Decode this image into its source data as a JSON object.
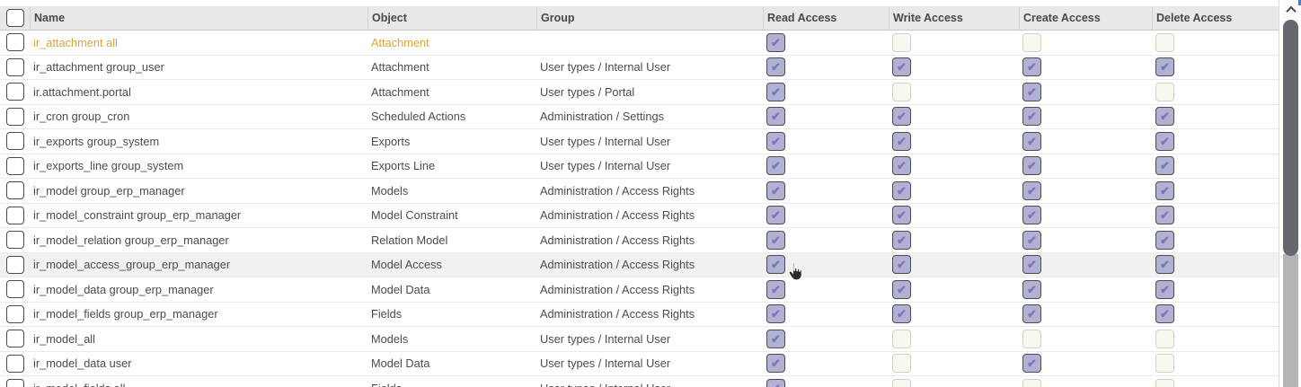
{
  "table": {
    "columns": {
      "name": "Name",
      "object": "Object",
      "group": "Group",
      "read": "Read Access",
      "write": "Write Access",
      "create": "Create Access",
      "delete": "Delete Access"
    },
    "access_keys": [
      "read",
      "write",
      "create",
      "delete"
    ],
    "rows": [
      {
        "name": "ir_attachment all",
        "object": "Attachment",
        "group": "",
        "read": true,
        "write": false,
        "create": false,
        "delete": false,
        "modified": true,
        "hovered": false
      },
      {
        "name": "ir_attachment group_user",
        "object": "Attachment",
        "group": "User types / Internal User",
        "read": true,
        "write": true,
        "create": true,
        "delete": true,
        "modified": false,
        "hovered": false
      },
      {
        "name": "ir.attachment.portal",
        "object": "Attachment",
        "group": "User types / Portal",
        "read": true,
        "write": false,
        "create": true,
        "delete": false,
        "modified": false,
        "hovered": false
      },
      {
        "name": "ir_cron group_cron",
        "object": "Scheduled Actions",
        "group": "Administration / Settings",
        "read": true,
        "write": true,
        "create": true,
        "delete": true,
        "modified": false,
        "hovered": false
      },
      {
        "name": "ir_exports group_system",
        "object": "Exports",
        "group": "User types / Internal User",
        "read": true,
        "write": true,
        "create": true,
        "delete": true,
        "modified": false,
        "hovered": false
      },
      {
        "name": "ir_exports_line group_system",
        "object": "Exports Line",
        "group": "User types / Internal User",
        "read": true,
        "write": true,
        "create": true,
        "delete": true,
        "modified": false,
        "hovered": false
      },
      {
        "name": "ir_model group_erp_manager",
        "object": "Models",
        "group": "Administration / Access Rights",
        "read": true,
        "write": true,
        "create": true,
        "delete": true,
        "modified": false,
        "hovered": false
      },
      {
        "name": "ir_model_constraint group_erp_manager",
        "object": "Model Constraint",
        "group": "Administration / Access Rights",
        "read": true,
        "write": true,
        "create": true,
        "delete": true,
        "modified": false,
        "hovered": false
      },
      {
        "name": "ir_model_relation group_erp_manager",
        "object": "Relation Model",
        "group": "Administration / Access Rights",
        "read": true,
        "write": true,
        "create": true,
        "delete": true,
        "modified": false,
        "hovered": false
      },
      {
        "name": "ir_model_access_group_erp_manager",
        "object": "Model Access",
        "group": "Administration / Access Rights",
        "read": true,
        "write": true,
        "create": true,
        "delete": true,
        "modified": false,
        "hovered": true
      },
      {
        "name": "ir_model_data group_erp_manager",
        "object": "Model Data",
        "group": "Administration / Access Rights",
        "read": true,
        "write": true,
        "create": true,
        "delete": true,
        "modified": false,
        "hovered": false
      },
      {
        "name": "ir_model_fields group_erp_manager",
        "object": "Fields",
        "group": "Administration / Access Rights",
        "read": true,
        "write": true,
        "create": true,
        "delete": true,
        "modified": false,
        "hovered": false
      },
      {
        "name": "ir_model_all",
        "object": "Models",
        "group": "User types / Internal User",
        "read": true,
        "write": false,
        "create": false,
        "delete": false,
        "modified": false,
        "hovered": false
      },
      {
        "name": "ir_model_data user",
        "object": "Model Data",
        "group": "User types / Internal User",
        "read": true,
        "write": false,
        "create": true,
        "delete": false,
        "modified": false,
        "hovered": false
      },
      {
        "name": "ir_model_fields all",
        "object": "Fields",
        "group": "User types / Internal User",
        "read": true,
        "write": false,
        "create": false,
        "delete": false,
        "modified": false,
        "hovered": false
      }
    ],
    "checkmark_glyph": "✔"
  },
  "colors": {
    "checked_checkbox_bg": "#b2b0d3",
    "checkmark": "#7c77b5",
    "unchecked_checkbox_bg": "#f8f7f0",
    "modified_row_text": "#d8a634",
    "header_bg": "#e8e8e8",
    "hover_row_bg": "#f1f1f1",
    "scrollbar_thumb": "#64676e"
  }
}
